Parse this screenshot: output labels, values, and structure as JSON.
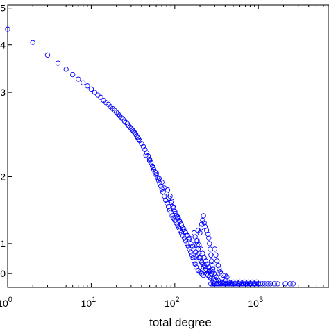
{
  "chart_data": {
    "type": "scatter",
    "xlabel": "total degree",
    "ylabel": "",
    "x_scale": "log",
    "y_scale": "log",
    "xlim": [
      1,
      7000
    ],
    "ylim": [
      0.92,
      5.1
    ],
    "marker_color": "#0000ff",
    "x_ticks": [
      {
        "value": 1,
        "base": "10",
        "exp": "0"
      },
      {
        "value": 10,
        "base": "10",
        "exp": "1"
      },
      {
        "value": 100,
        "base": "10",
        "exp": "2"
      },
      {
        "value": 1000,
        "base": "10",
        "exp": "3"
      }
    ],
    "y_ticks": [
      {
        "value": 1,
        "label": "0"
      },
      {
        "value": 1.2,
        "label": "1"
      },
      {
        "value": 1.8,
        "label": "2"
      },
      {
        "value": 3.0,
        "label": "3"
      },
      {
        "value": 4.0,
        "label": "4"
      },
      {
        "value": 5.0,
        "label": "5"
      }
    ],
    "points": [
      [
        1.0,
        4.4
      ],
      [
        2.0,
        4.06
      ],
      [
        3.0,
        3.76
      ],
      [
        4.0,
        3.58
      ],
      [
        5.0,
        3.45
      ],
      [
        6.0,
        3.34
      ],
      [
        7.0,
        3.25
      ],
      [
        8.0,
        3.18
      ],
      [
        9.0,
        3.12
      ],
      [
        10,
        3.06
      ],
      [
        11,
        3.0
      ],
      [
        12,
        2.95
      ],
      [
        13,
        2.91
      ],
      [
        14,
        2.86
      ],
      [
        15,
        2.82
      ],
      [
        16,
        2.79
      ],
      [
        17,
        2.75
      ],
      [
        18,
        2.72
      ],
      [
        19,
        2.69
      ],
      [
        20,
        2.66
      ],
      [
        21,
        2.63
      ],
      [
        22,
        2.6
      ],
      [
        23,
        2.57
      ],
      [
        24,
        2.55
      ],
      [
        25,
        2.52
      ],
      [
        26,
        2.5
      ],
      [
        27,
        2.48
      ],
      [
        28,
        2.45
      ],
      [
        29,
        2.43
      ],
      [
        30,
        2.41
      ],
      [
        31,
        2.39
      ],
      [
        32,
        2.37
      ],
      [
        33,
        2.35
      ],
      [
        34,
        2.33
      ],
      [
        35,
        2.3
      ],
      [
        36,
        2.28
      ],
      [
        37,
        2.26
      ],
      [
        38,
        2.24
      ],
      [
        40,
        2.2
      ],
      [
        42,
        2.16
      ],
      [
        44,
        2.12
      ],
      [
        46,
        2.08
      ],
      [
        48,
        2.04
      ],
      [
        50,
        2.0
      ],
      [
        52,
        1.96
      ],
      [
        54,
        1.92
      ],
      [
        56,
        1.88
      ],
      [
        58,
        1.85
      ],
      [
        60,
        1.82
      ],
      [
        62,
        1.79
      ],
      [
        64,
        1.76
      ],
      [
        66,
        1.73
      ],
      [
        68,
        1.7
      ],
      [
        70,
        1.67
      ],
      [
        72,
        1.64
      ],
      [
        75,
        1.6
      ],
      [
        78,
        1.56
      ],
      [
        81,
        1.53
      ],
      [
        84,
        1.5
      ],
      [
        87,
        1.47
      ],
      [
        90,
        1.45
      ],
      [
        93,
        1.42
      ],
      [
        96,
        1.4
      ],
      [
        100,
        1.38
      ],
      [
        104,
        1.36
      ],
      [
        108,
        1.34
      ],
      [
        112,
        1.32
      ],
      [
        116,
        1.3
      ],
      [
        120,
        1.28
      ],
      [
        125,
        1.26
      ],
      [
        130,
        1.24
      ],
      [
        135,
        1.22
      ],
      [
        140,
        1.2
      ],
      [
        145,
        1.18
      ],
      [
        150,
        1.16
      ],
      [
        155,
        1.14
      ],
      [
        160,
        1.12
      ],
      [
        165,
        1.1
      ],
      [
        170,
        1.08
      ],
      [
        175,
        1.06
      ],
      [
        180,
        1.04
      ],
      [
        190,
        1.02
      ],
      [
        200,
        1.01
      ],
      [
        210,
        1.0
      ],
      [
        220,
        0.99
      ],
      [
        45,
        2.05
      ],
      [
        50,
        1.98
      ],
      [
        55,
        1.9
      ],
      [
        60,
        1.84
      ],
      [
        65,
        1.78
      ],
      [
        70,
        1.74
      ],
      [
        75,
        1.68
      ],
      [
        80,
        1.62
      ],
      [
        85,
        1.58
      ],
      [
        90,
        1.54
      ],
      [
        95,
        1.5
      ],
      [
        100,
        1.46
      ],
      [
        105,
        1.42
      ],
      [
        110,
        1.4
      ],
      [
        115,
        1.37
      ],
      [
        120,
        1.34
      ],
      [
        128,
        1.31
      ],
      [
        135,
        1.28
      ],
      [
        142,
        1.26
      ],
      [
        150,
        1.24
      ],
      [
        82,
        1.66
      ],
      [
        88,
        1.6
      ],
      [
        92,
        1.55
      ],
      [
        97,
        1.49
      ],
      [
        102,
        1.44
      ],
      [
        108,
        1.41
      ],
      [
        113,
        1.38
      ],
      [
        118,
        1.35
      ],
      [
        124,
        1.32
      ],
      [
        132,
        1.29
      ],
      [
        140,
        1.26
      ],
      [
        148,
        1.23
      ],
      [
        156,
        1.2
      ],
      [
        163,
        1.18
      ],
      [
        170,
        1.16
      ],
      [
        178,
        1.14
      ],
      [
        186,
        1.12
      ],
      [
        195,
        1.1
      ],
      [
        205,
        1.08
      ],
      [
        215,
        1.06
      ],
      [
        225,
        1.05
      ],
      [
        235,
        1.03
      ],
      [
        245,
        1.02
      ],
      [
        260,
        1.01
      ],
      [
        275,
        1.0
      ],
      [
        190,
        1.3
      ],
      [
        200,
        1.28
      ],
      [
        205,
        1.32
      ],
      [
        210,
        1.35
      ],
      [
        215,
        1.38
      ],
      [
        220,
        1.42
      ],
      [
        225,
        1.36
      ],
      [
        230,
        1.33
      ],
      [
        240,
        1.3
      ],
      [
        250,
        1.27
      ],
      [
        255,
        1.24
      ],
      [
        260,
        1.2
      ],
      [
        265,
        1.16
      ],
      [
        270,
        1.12
      ],
      [
        275,
        1.08
      ],
      [
        280,
        1.05
      ],
      [
        285,
        1.03
      ],
      [
        295,
        1.0
      ],
      [
        305,
        0.99
      ],
      [
        315,
        0.98
      ],
      [
        185,
        1.22
      ],
      [
        195,
        1.19
      ],
      [
        205,
        1.16
      ],
      [
        215,
        1.13
      ],
      [
        225,
        1.1
      ],
      [
        235,
        1.08
      ],
      [
        245,
        1.06
      ],
      [
        255,
        1.04
      ],
      [
        265,
        1.02
      ],
      [
        285,
        1.01
      ],
      [
        300,
        1.16
      ],
      [
        310,
        1.12
      ],
      [
        320,
        1.08
      ],
      [
        330,
        1.05
      ],
      [
        340,
        1.03
      ],
      [
        350,
        1.01
      ],
      [
        360,
        1.0
      ],
      [
        380,
        0.99
      ],
      [
        400,
        0.99
      ],
      [
        420,
        0.98
      ],
      [
        170,
        1.28
      ],
      [
        175,
        1.25
      ],
      [
        180,
        1.22
      ],
      [
        185,
        1.19
      ],
      [
        190,
        1.16
      ],
      [
        195,
        1.13
      ],
      [
        200,
        1.1
      ],
      [
        210,
        1.07
      ],
      [
        220,
        1.04
      ],
      [
        230,
        1.02
      ],
      [
        240,
        1.0
      ],
      [
        250,
        0.99
      ],
      [
        260,
        0.98
      ],
      [
        270,
        0.97
      ],
      [
        290,
        0.97
      ],
      [
        310,
        0.96
      ],
      [
        330,
        0.96
      ],
      [
        350,
        0.95
      ],
      [
        370,
        0.95
      ],
      [
        390,
        0.95
      ],
      [
        410,
        0.96
      ],
      [
        430,
        0.95
      ],
      [
        450,
        0.95
      ],
      [
        470,
        0.94
      ],
      [
        500,
        0.95
      ],
      [
        520,
        0.94
      ],
      [
        550,
        0.95
      ],
      [
        580,
        0.94
      ],
      [
        600,
        0.95
      ],
      [
        640,
        0.94
      ],
      [
        680,
        0.95
      ],
      [
        720,
        0.94
      ],
      [
        760,
        0.95
      ],
      [
        800,
        0.94
      ],
      [
        850,
        0.95
      ],
      [
        900,
        0.94
      ],
      [
        950,
        0.95
      ],
      [
        1000,
        0.94
      ],
      [
        300,
        0.94
      ],
      [
        320,
        0.94
      ],
      [
        340,
        0.94
      ],
      [
        360,
        0.94
      ],
      [
        380,
        0.94
      ],
      [
        400,
        0.94
      ],
      [
        420,
        0.94
      ],
      [
        440,
        0.94
      ],
      [
        460,
        0.94
      ],
      [
        480,
        0.94
      ],
      [
        500,
        0.94
      ],
      [
        530,
        0.94
      ],
      [
        560,
        0.94
      ],
      [
        590,
        0.94
      ],
      [
        620,
        0.94
      ],
      [
        660,
        0.94
      ],
      [
        700,
        0.94
      ],
      [
        740,
        0.94
      ],
      [
        780,
        0.94
      ],
      [
        820,
        0.94
      ],
      [
        870,
        0.94
      ],
      [
        920,
        0.94
      ],
      [
        980,
        0.94
      ],
      [
        1050,
        0.94
      ],
      [
        1120,
        0.94
      ],
      [
        1200,
        0.94
      ],
      [
        1300,
        0.94
      ],
      [
        1400,
        0.94
      ],
      [
        1550,
        0.94
      ],
      [
        1700,
        0.94
      ],
      [
        2100,
        0.94
      ],
      [
        2400,
        0.94
      ],
      [
        2600,
        0.94
      ],
      [
        270,
        0.94
      ],
      [
        280,
        0.94
      ],
      [
        290,
        0.94
      ],
      [
        310,
        0.94
      ],
      [
        330,
        0.94
      ],
      [
        350,
        0.94
      ]
    ]
  }
}
